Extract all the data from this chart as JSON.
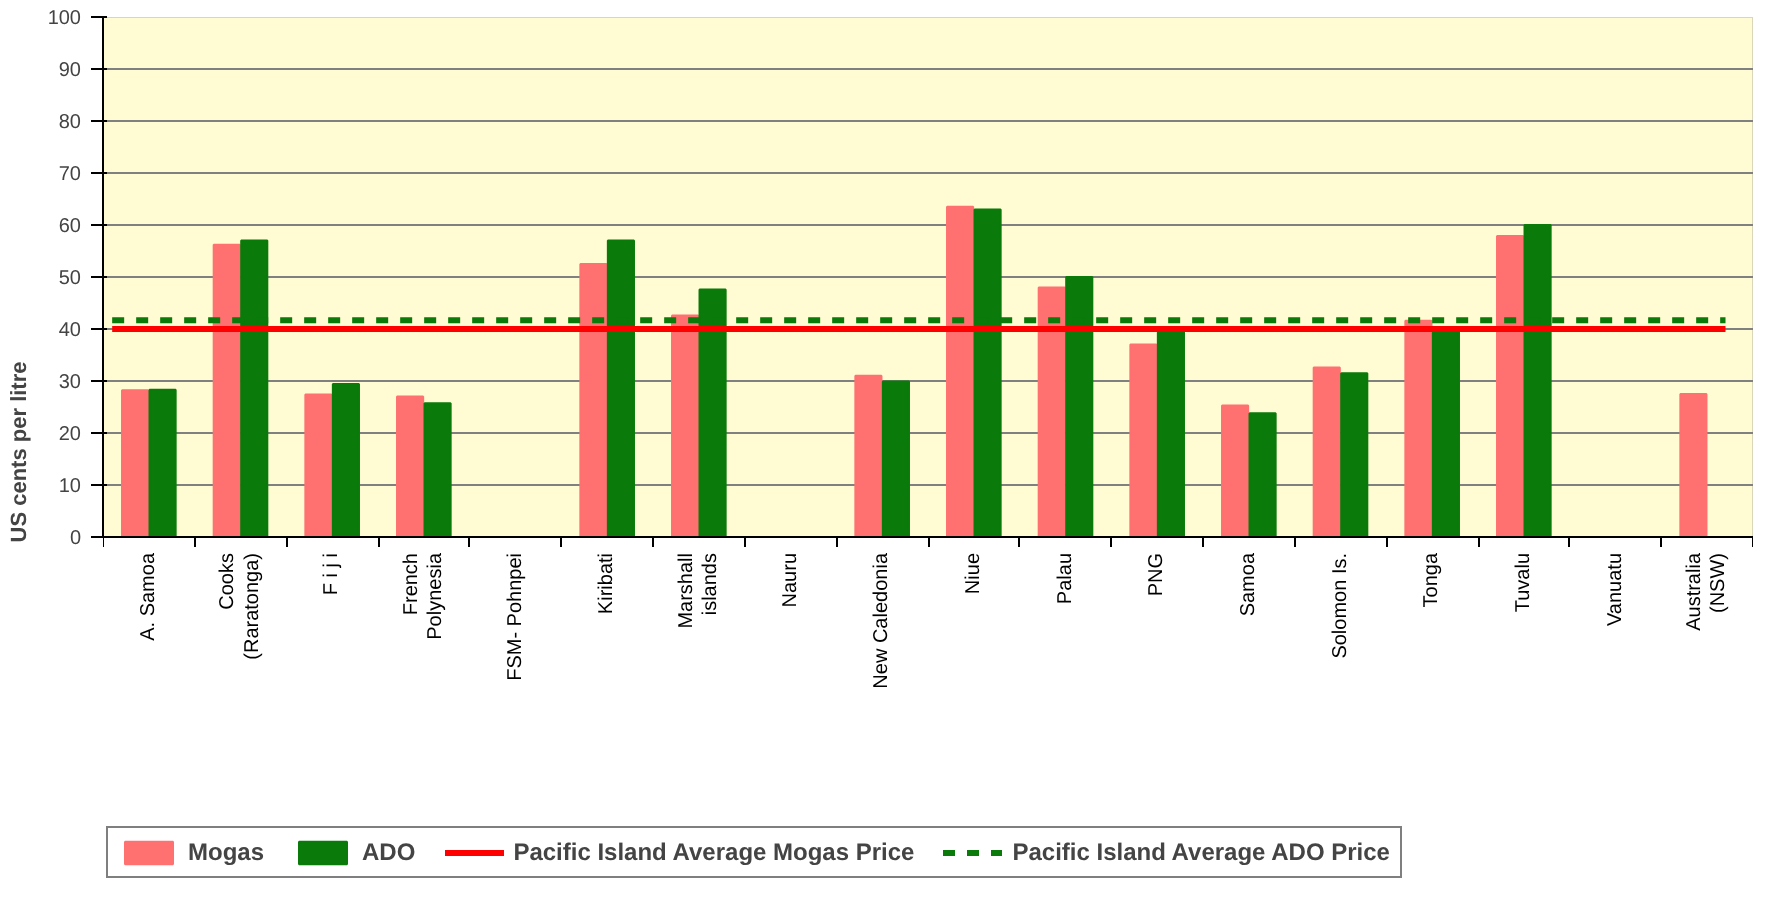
{
  "chart_data": {
    "type": "bar",
    "ylabel": "US cents per litre",
    "categories": [
      "A. Samoa",
      "Cooks\n(Raratonga)",
      "F i j i",
      "French\nPolynesia",
      "FSM- Pohnpei",
      "Kiribati",
      "Marshall\nislands",
      "Nauru",
      "New Caledonia",
      "Niue",
      "Palau",
      "PNG",
      "Samoa",
      "Solomon Is.",
      "Tonga",
      "Tuvalu",
      "Vanuatu",
      "Australia\n(NSW)"
    ],
    "series": [
      {
        "name": "Mogas",
        "color": "#ff7070",
        "values": [
          28.2,
          56.2,
          27.4,
          27,
          null,
          52.5,
          42.6,
          null,
          31,
          63.5,
          48,
          37,
          25.3,
          32.6,
          41.6,
          57.9,
          null,
          27.5
        ]
      },
      {
        "name": "ADO",
        "color": "#0a7a0a",
        "values": [
          28.3,
          57,
          29.4,
          25.7,
          null,
          57,
          47.6,
          null,
          29.9,
          63,
          50,
          40,
          23.8,
          31.5,
          40,
          60,
          null,
          null
        ]
      }
    ],
    "ref_lines": [
      {
        "axis": "y",
        "value": 40,
        "label": "Pacific Island Average Mogas Price",
        "color": "#ff0000",
        "line_style": "solid"
      },
      {
        "axis": "y",
        "value": 41.7,
        "label": "Pacific Island Average ADO Price",
        "color": "#0a7a0a",
        "line_style": "dashed"
      }
    ],
    "ylim": [
      0,
      100
    ],
    "yticks": [
      0,
      10,
      20,
      30,
      40,
      50,
      60,
      70,
      80,
      90,
      100
    ],
    "grid": "y",
    "legend": "bottom"
  }
}
